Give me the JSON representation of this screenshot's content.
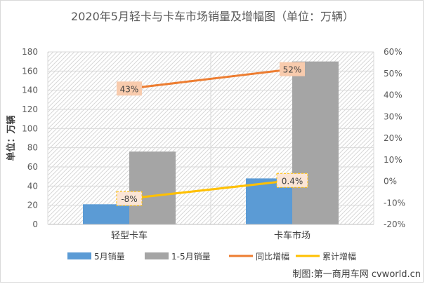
{
  "chart_data": {
    "type": "bar",
    "title": "2020年5月轻卡与卡车市场销量及增幅图（单位：万辆）",
    "ylabel": "单位：万辆",
    "categories": [
      "轻型卡车",
      "卡车市场"
    ],
    "y_left": {
      "range": [
        0,
        180
      ],
      "ticks": [
        0,
        20,
        40,
        60,
        80,
        100,
        120,
        140,
        160,
        180
      ]
    },
    "y_right": {
      "range": [
        -20,
        60
      ],
      "ticks": [
        "-20%",
        "-10%",
        "0%",
        "10%",
        "20%",
        "30%",
        "40%",
        "50%",
        "60%"
      ]
    },
    "series": [
      {
        "name": "5月销量",
        "type": "bar",
        "axis": "left",
        "color": "#5b9bd5",
        "values": [
          21,
          48
        ]
      },
      {
        "name": "1-5月销量",
        "type": "bar",
        "axis": "left",
        "color": "#a5a5a5",
        "values": [
          76,
          170
        ]
      },
      {
        "name": "同比增幅",
        "type": "line",
        "axis": "right",
        "color": "#ed7d31",
        "values": [
          43,
          52
        ],
        "labels": [
          "43%",
          "52%"
        ]
      },
      {
        "name": "累计增幅",
        "type": "line",
        "axis": "right",
        "color": "#ffc000",
        "values": [
          -8,
          0.4
        ],
        "labels": [
          "-8%",
          "0.4%"
        ]
      }
    ],
    "grid": true,
    "legend": "bottom"
  },
  "credit": "制图:第一商用车网 cvworld.cn"
}
